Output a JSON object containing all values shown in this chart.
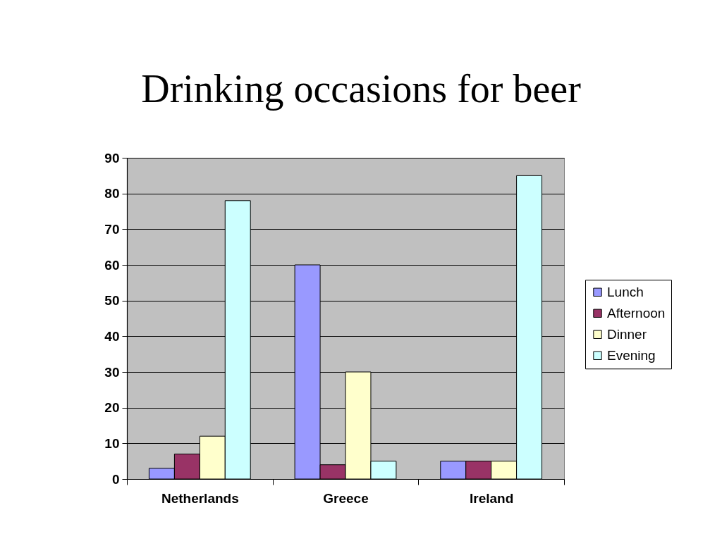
{
  "chart_data": {
    "type": "bar",
    "title": "Drinking occasions for beer",
    "categories": [
      "Netherlands",
      "Greece",
      "Ireland"
    ],
    "series": [
      {
        "name": "Lunch",
        "color": "#9999ff",
        "values": [
          3,
          60,
          5
        ]
      },
      {
        "name": "Afternoon",
        "color": "#993366",
        "values": [
          7,
          4,
          5
        ]
      },
      {
        "name": "Dinner",
        "color": "#ffffcc",
        "values": [
          12,
          30,
          5
        ]
      },
      {
        "name": "Evening",
        "color": "#ccffff",
        "values": [
          78,
          5,
          85
        ]
      }
    ],
    "ylim": [
      0,
      90
    ],
    "yticks": [
      0,
      10,
      20,
      30,
      40,
      50,
      60,
      70,
      80,
      90
    ],
    "grid": "y",
    "legend": "right"
  }
}
